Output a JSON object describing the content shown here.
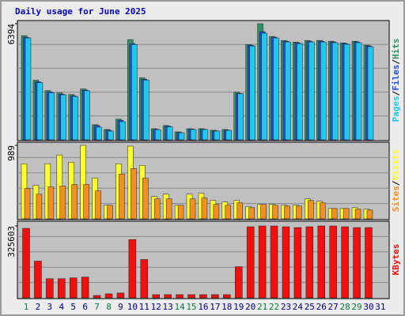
{
  "chart_data": {
    "type": "bar",
    "title": "Daily usage for June 2025",
    "categories": [
      "1",
      "2",
      "3",
      "4",
      "5",
      "6",
      "7",
      "8",
      "9",
      "10",
      "11",
      "12",
      "13",
      "14",
      "15",
      "16",
      "17",
      "18",
      "19",
      "20",
      "21",
      "22",
      "23",
      "24",
      "25",
      "26",
      "27",
      "28",
      "29",
      "30",
      "31"
    ],
    "category_colors": [
      "#0a7a3a",
      "#000080",
      "#000080",
      "#000080",
      "#000080",
      "#000080",
      "#0a7a3a",
      "#0a7a3a",
      "#000080",
      "#000080",
      "#000080",
      "#000080",
      "#000080",
      "#0a7a3a",
      "#0a7a3a",
      "#000080",
      "#000080",
      "#000080",
      "#000080",
      "#000080",
      "#0a7a3a",
      "#0a7a3a",
      "#000080",
      "#000080",
      "#000080",
      "#000080",
      "#000080",
      "#0a7a3a",
      "#0a7a3a",
      "#000080",
      "#000080"
    ],
    "legend_separator": "/",
    "panels": [
      {
        "ylim": [
          0,
          6394
        ],
        "yticks": [
          6394
        ],
        "series": [
          {
            "name": "Hits",
            "color": "#2e9468",
            "values": [
              5737,
              3285,
              2715,
              2584,
              2496,
              2803,
              832,
              569,
              1139,
              5518,
              3416,
              613,
              788,
              438,
              613,
              613,
              526,
              569,
              2628,
              5255,
              6394,
              5693,
              5474,
              5387,
              5474,
              5474,
              5430,
              5343,
              5430,
              5212,
              0
            ]
          },
          {
            "name": "Files",
            "color": "#2050d8",
            "values": [
              5650,
              3200,
              2640,
              2520,
              2430,
              2740,
              790,
              530,
              1080,
              5300,
              3340,
              580,
              760,
              410,
              590,
              590,
              500,
              540,
              2560,
              5210,
              5960,
              5650,
              5430,
              5340,
              5430,
              5430,
              5390,
              5300,
              5390,
              5170,
              0
            ]
          },
          {
            "name": "Pages",
            "color": "#20c8f0",
            "values": [
              5610,
              3150,
              2590,
              2480,
              2390,
              2700,
              700,
              480,
              1000,
              5250,
              3290,
              560,
              720,
              390,
              570,
              570,
              480,
              520,
              2540,
              5170,
              5870,
              5610,
              5390,
              5300,
              5390,
              5390,
              5350,
              5260,
              5350,
              5130,
              0
            ]
          }
        ]
      },
      {
        "ylim": [
          0,
          989
        ],
        "yticks": [
          989
        ],
        "series": [
          {
            "name": "Visits",
            "color": "#ffff30",
            "values": [
              742,
              452,
              742,
              860,
              763,
              989,
              548,
              183,
              742,
              978,
              720,
              301,
              333,
              183,
              333,
              344,
              247,
              226,
              247,
              161,
              194,
              194,
              183,
              183,
              269,
              237,
              140,
              140,
              150,
              129,
              0
            ]
          },
          {
            "name": "Sites",
            "color": "#f09020",
            "values": [
              409,
              333,
              430,
              441,
              462,
              462,
              376,
              183,
              602,
              677,
              548,
              269,
              269,
              183,
              269,
              280,
              194,
              183,
              215,
              150,
              194,
              183,
              172,
              172,
              247,
              215,
              140,
              140,
              129,
              118,
              0
            ]
          }
        ]
      },
      {
        "ylim": [
          0,
          325603
        ],
        "yticks": [
          325603
        ],
        "series": [
          {
            "name": "KBytes",
            "color": "#f01010",
            "values": [
              314742,
              166419,
              86828,
              86828,
              90445,
              94063,
              10853,
              18089,
              21707,
              264100,
              173655,
              14471,
              14471,
              14471,
              14471,
              14471,
              14471,
              14471,
              141095,
              321985,
              325603,
              325603,
              321985,
              318367,
              321985,
              325603,
              325603,
              321985,
              318367,
              318367,
              0
            ]
          }
        ]
      }
    ]
  }
}
